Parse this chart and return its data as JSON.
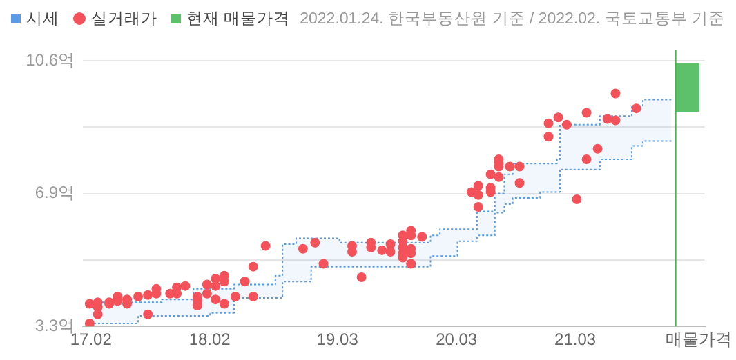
{
  "chart_data": {
    "type": "scatter",
    "annotations": [
      "2022.01.24. 한국부동산원 기준 / 2022.02. 국토교통부 기준"
    ],
    "xlim": [
      "2017-01-07",
      "2022-04-03"
    ],
    "xticks": [
      {
        "value": "2017-02-01",
        "label": "17.02"
      },
      {
        "value": "2018-02-01",
        "label": "18.02"
      },
      {
        "value": "2019-03-01",
        "label": "19.03"
      },
      {
        "value": "2020-03-01",
        "label": "20.03"
      },
      {
        "value": "2021-03-01",
        "label": "21.03"
      },
      {
        "value": "2022-03-15",
        "label": "매물가격"
      }
    ],
    "ylim": [
      3.3,
      10.6
    ],
    "yticks": [
      {
        "value": 3.3,
        "label": "3.3억"
      },
      {
        "value": 5.125,
        "label": null
      },
      {
        "value": 6.95,
        "label": "6.9억"
      },
      {
        "value": 8.775,
        "label": null
      },
      {
        "value": 10.6,
        "label": "10.6억"
      }
    ],
    "grid": "y",
    "legend": "top left",
    "ref_lines": [
      {
        "axis": "x",
        "value": "2022-01-04",
        "color": "#4caf50"
      }
    ],
    "series": [
      {
        "name": "시세",
        "type": "step",
        "color": "#5b9be6",
        "line_style": "dotted",
        "marker": "none",
        "x": [
          "2017-01-28",
          "2017-06-26",
          "2017-09-07",
          "2017-12-13",
          "2018-02-02",
          "2018-04-17",
          "2018-08-22",
          "2018-09-13",
          "2018-10-25",
          "2018-12-10",
          "2019-03-07",
          "2019-12-12",
          "2020-01-10",
          "2020-03-04",
          "2020-05-03",
          "2020-06-27",
          "2020-07-26",
          "2020-08-21",
          "2020-11-13",
          "2021-01-04",
          "2021-01-13",
          "2021-05-16",
          "2021-08-22",
          "2021-09-25",
          "2021-12-22"
        ],
        "values": [
          3.96,
          3.96,
          4.04,
          4.33,
          4.33,
          4.45,
          4.69,
          5.56,
          5.72,
          5.72,
          5.6,
          5.8,
          5.97,
          5.97,
          6.46,
          6.95,
          7.48,
          7.77,
          7.77,
          7.89,
          8.84,
          9.08,
          9.33,
          9.53,
          9.53
        ],
        "lower": [
          3.38,
          3.59,
          3.59,
          3.59,
          3.67,
          4.08,
          4.08,
          4.53,
          4.53,
          4.94,
          4.94,
          5.23,
          5.23,
          5.64,
          5.8,
          6.42,
          6.66,
          6.83,
          6.99,
          6.99,
          7.61,
          7.89,
          8.26,
          8.39,
          8.39
        ],
        "upper": [
          3.96,
          3.96,
          4.04,
          4.33,
          4.33,
          4.45,
          4.69,
          5.56,
          5.72,
          5.72,
          5.6,
          5.8,
          5.97,
          5.97,
          6.46,
          6.95,
          7.48,
          7.77,
          7.77,
          7.89,
          8.84,
          9.08,
          9.33,
          9.53,
          9.53
        ]
      },
      {
        "type": "step",
        "color": "#5b9be6",
        "line_style": "dotted",
        "marker": "none",
        "x": [
          "2017-01-28",
          "2017-06-26",
          "2017-09-07",
          "2017-12-13",
          "2018-02-02",
          "2018-04-17",
          "2018-08-22",
          "2018-09-13",
          "2018-10-25",
          "2018-12-10",
          "2019-03-07",
          "2019-12-12",
          "2020-01-10",
          "2020-03-04",
          "2020-05-03",
          "2020-06-27",
          "2020-07-26",
          "2020-08-21",
          "2020-11-13",
          "2021-01-04",
          "2021-01-13",
          "2021-05-16",
          "2021-08-22",
          "2021-09-25",
          "2021-12-22"
        ],
        "values": [
          3.38,
          3.59,
          3.59,
          3.59,
          3.67,
          4.08,
          4.08,
          4.53,
          4.53,
          4.94,
          4.94,
          5.23,
          5.23,
          5.64,
          5.8,
          6.42,
          6.66,
          6.83,
          6.99,
          6.99,
          7.61,
          7.89,
          8.26,
          8.39,
          8.39
        ]
      },
      {
        "name": "실거래가",
        "color": "#f4525b",
        "marker": "circle",
        "x": [
          "2017-01-28",
          "2017-01-28",
          "2017-02-22",
          "2017-02-22",
          "2017-02-22",
          "2017-03-29",
          "2017-03-29",
          "2017-04-24",
          "2017-04-24",
          "2017-05-23",
          "2017-05-23",
          "2017-06-26",
          "2017-07-26",
          "2017-07-26",
          "2017-08-21",
          "2017-08-21",
          "2017-10-02",
          "2017-10-23",
          "2017-10-23",
          "2017-11-18",
          "2017-12-25",
          "2017-12-25",
          "2017-12-25",
          "2018-01-24",
          "2018-01-24",
          "2018-02-19",
          "2018-02-19",
          "2018-02-19",
          "2018-03-18",
          "2018-03-18",
          "2018-03-18",
          "2018-04-21",
          "2018-05-20",
          "2018-06-15",
          "2018-06-15",
          "2018-07-23",
          "2018-11-15",
          "2018-12-22",
          "2019-01-17",
          "2019-04-15",
          "2019-04-15",
          "2019-05-14",
          "2019-06-12",
          "2019-06-12",
          "2019-07-16",
          "2019-08-11",
          "2019-08-11",
          "2019-09-18",
          "2019-09-18",
          "2019-09-18",
          "2019-09-18",
          "2019-09-18",
          "2019-10-13",
          "2019-10-13",
          "2019-10-13",
          "2019-10-13",
          "2019-10-13",
          "2019-11-16",
          "2020-04-16",
          "2020-05-07",
          "2020-05-07",
          "2020-05-07",
          "2020-06-14",
          "2020-06-14",
          "2020-06-14",
          "2020-07-09",
          "2020-07-09",
          "2020-07-09",
          "2020-07-09",
          "2020-08-12",
          "2020-09-11",
          "2020-09-11",
          "2020-12-09",
          "2020-12-09",
          "2021-01-08",
          "2021-02-03",
          "2021-03-06",
          "2021-04-05",
          "2021-04-05",
          "2021-05-09",
          "2021-06-08",
          "2021-07-03",
          "2021-07-03",
          "2021-09-05"
        ],
        "values": [
          3.92,
          3.38,
          3.96,
          3.83,
          3.63,
          3.96,
          3.92,
          4.12,
          4.0,
          4.04,
          3.92,
          4.12,
          4.16,
          3.63,
          4.33,
          4.2,
          4.2,
          4.37,
          4.2,
          4.41,
          4.12,
          4.0,
          3.87,
          4.45,
          4.2,
          4.61,
          4.41,
          4.04,
          4.69,
          4.53,
          3.92,
          4.12,
          4.53,
          4.94,
          4.12,
          5.51,
          5.43,
          5.6,
          5.02,
          5.51,
          5.35,
          4.65,
          5.6,
          5.47,
          5.39,
          5.56,
          5.35,
          5.8,
          5.64,
          5.47,
          5.31,
          5.19,
          5.93,
          5.8,
          5.43,
          5.31,
          5.02,
          5.76,
          6.99,
          7.16,
          6.91,
          6.58,
          7.48,
          7.11,
          6.99,
          7.89,
          7.77,
          7.69,
          7.4,
          7.69,
          7.69,
          7.24,
          8.88,
          8.51,
          9.04,
          8.84,
          6.79,
          9.17,
          7.89,
          8.18,
          9.0,
          9.7,
          8.96,
          9.29
        ]
      },
      {
        "name": "현재 매물가격",
        "type": "bar",
        "color": "#5cc16a",
        "x": [
          "2022-02-08"
        ],
        "base": [
          9.21
        ],
        "values": [
          1.31
        ]
      }
    ]
  }
}
